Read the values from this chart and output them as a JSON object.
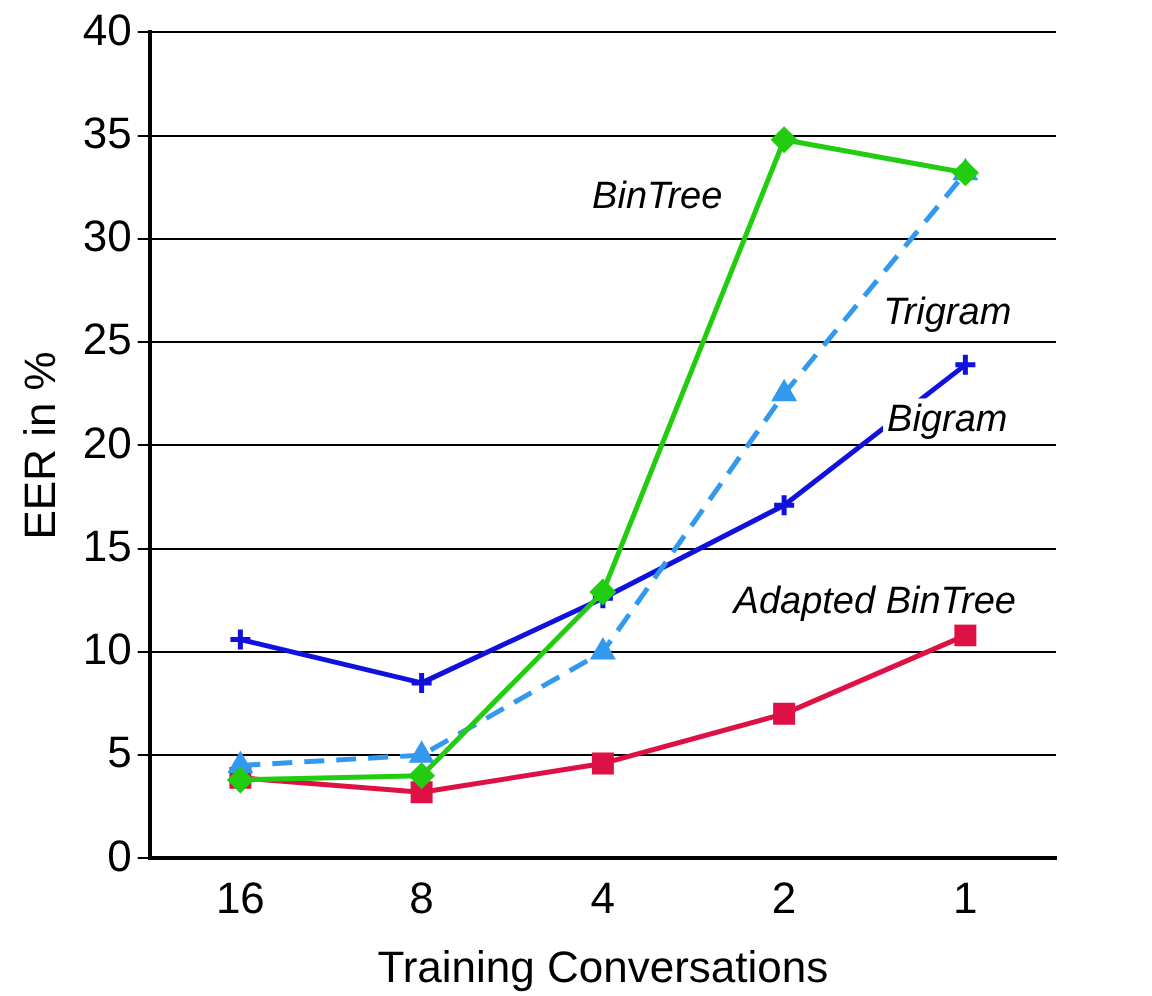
{
  "chart_data": {
    "type": "line",
    "xlabel": "Training Conversations",
    "ylabel": "EER in %",
    "categories": [
      "16",
      "8",
      "4",
      "2",
      "1"
    ],
    "series": [
      {
        "name": "BinTree",
        "color": "#22cc11",
        "marker": "diamond",
        "line_style": "solid",
        "values": [
          3.8,
          4.0,
          12.9,
          34.8,
          33.2
        ]
      },
      {
        "name": "Trigram",
        "color": "#3399ee",
        "marker": "triangle",
        "line_style": "dashed",
        "values": [
          4.5,
          5.0,
          10.0,
          22.5,
          33.2
        ]
      },
      {
        "name": "Bigram",
        "color": "#1111dd",
        "marker": "cross",
        "line_style": "solid",
        "values": [
          10.6,
          8.5,
          12.6,
          17.1,
          23.9
        ]
      },
      {
        "name": "Adapted BinTree",
        "color": "#dd1144",
        "marker": "square",
        "line_style": "solid",
        "values": [
          3.9,
          3.2,
          4.6,
          7.0,
          10.8
        ]
      }
    ],
    "ylim": [
      0,
      40
    ],
    "yticks": [
      0,
      5,
      10,
      15,
      20,
      25,
      30,
      35,
      40
    ],
    "grid": "y",
    "legend": false
  }
}
